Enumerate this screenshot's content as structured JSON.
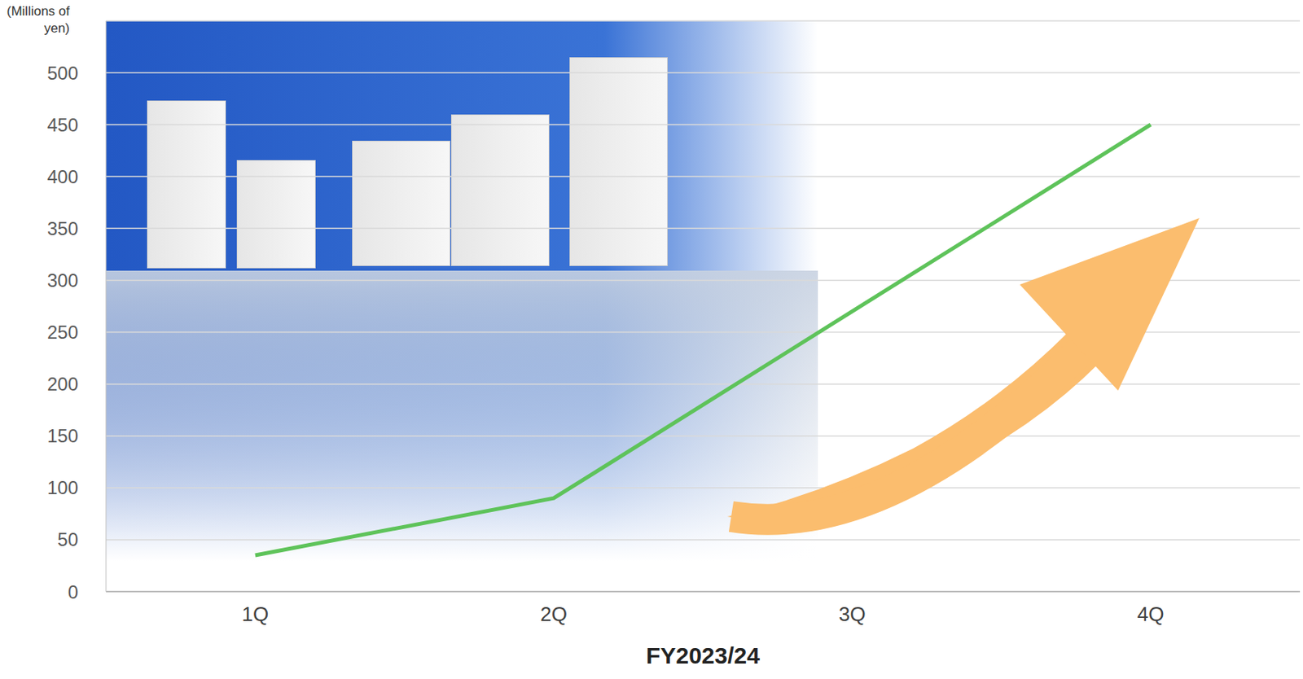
{
  "chart_data": {
    "type": "line",
    "y_label": "(Millions of yen)",
    "x_label": "FY2023/24",
    "categories": [
      "1Q",
      "2Q",
      "3Q",
      "4Q"
    ],
    "values": [
      35,
      90,
      270,
      450
    ],
    "color": "#5ec35a",
    "marker": "none",
    "ylim": [
      0,
      550
    ],
    "yticks": [
      0,
      50,
      100,
      150,
      200,
      250,
      300,
      350,
      400,
      450,
      500
    ],
    "grid": true
  }
}
